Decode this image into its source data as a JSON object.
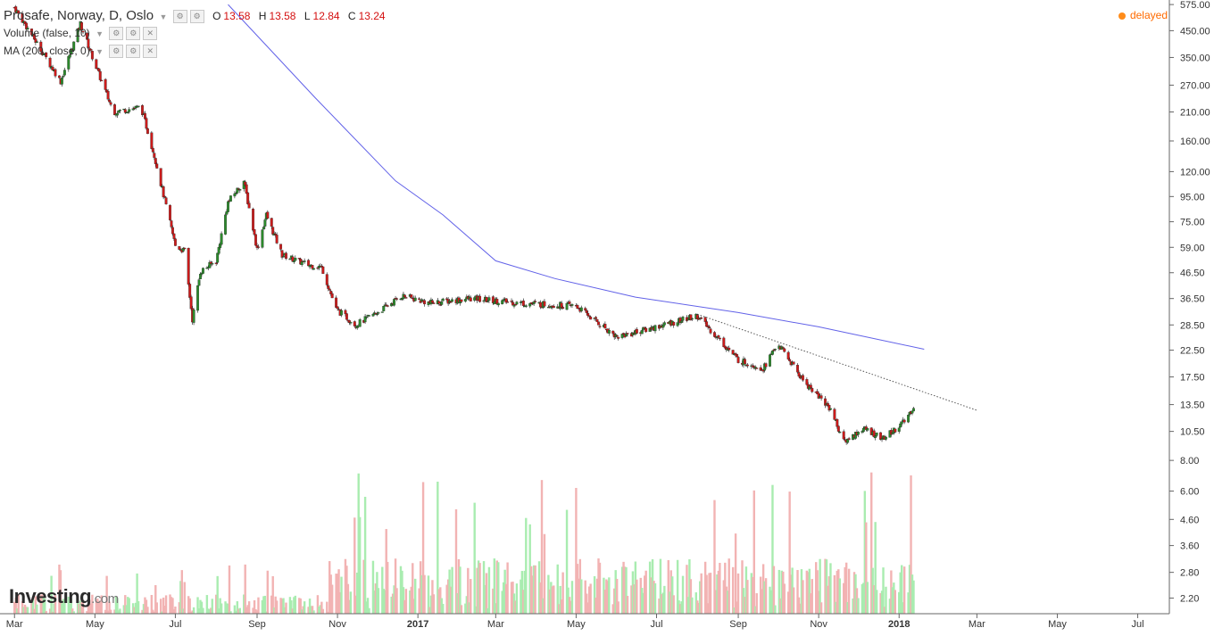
{
  "header": {
    "title": "Prosafe, Norway, D, Oslo",
    "ohlc": [
      {
        "label": "O",
        "value": "13.58"
      },
      {
        "label": "H",
        "value": "13.58"
      },
      {
        "label": "L",
        "value": "12.84"
      },
      {
        "label": "C",
        "value": "13.24"
      }
    ],
    "volume_study": "Volume (false, 10)",
    "ma_study": "MA (200, close, 0)"
  },
  "status": {
    "delayed": "delayed"
  },
  "logo": {
    "brand": "Investing",
    "domain": ".com"
  },
  "colors": {
    "up": "#2c8a2c",
    "down": "#cc1b1b",
    "vol_up": "#a9ecb0",
    "vol_down": "#f2b3b3",
    "ma": "#6262e8",
    "trendline": "#555555",
    "status": "#ff6a00"
  },
  "chart_data": {
    "type": "candlestick",
    "title": "Prosafe, Norway, D, Oslo",
    "y_scale": "log",
    "ylim": [
      1.9,
      600
    ],
    "y_ticks": [
      "575.00",
      "450.00",
      "350.00",
      "270.00",
      "210.00",
      "160.00",
      "120.00",
      "95.00",
      "75.00",
      "59.00",
      "46.50",
      "36.50",
      "28.50",
      "22.50",
      "17.50",
      "13.50",
      "10.50",
      "8.00",
      "6.00",
      "4.60",
      "3.60",
      "2.80",
      "2.20"
    ],
    "x_ticks": [
      "Mar",
      "May",
      "Jul",
      "Sep",
      "Nov",
      "2017",
      "Mar",
      "May",
      "Jul",
      "Sep",
      "Nov",
      "2018",
      "Mar",
      "May",
      "Jul"
    ],
    "x_range": [
      "2016-03",
      "2018-07"
    ],
    "price_series": [
      {
        "date": "2016-03-01",
        "close": 560
      },
      {
        "date": "2016-04-05",
        "close": 280
      },
      {
        "date": "2016-04-20",
        "close": 480
      },
      {
        "date": "2016-05-01",
        "close": 330
      },
      {
        "date": "2016-05-15",
        "close": 210
      },
      {
        "date": "2016-06-05",
        "close": 220
      },
      {
        "date": "2016-06-15",
        "close": 140
      },
      {
        "date": "2016-07-01",
        "close": 60
      },
      {
        "date": "2016-07-08",
        "close": 57
      },
      {
        "date": "2016-07-14",
        "close": 30
      },
      {
        "date": "2016-07-20",
        "close": 47
      },
      {
        "date": "2016-08-01",
        "close": 52
      },
      {
        "date": "2016-08-10",
        "close": 90
      },
      {
        "date": "2016-08-22",
        "close": 110
      },
      {
        "date": "2016-09-01",
        "close": 58
      },
      {
        "date": "2016-09-08",
        "close": 80
      },
      {
        "date": "2016-09-20",
        "close": 55
      },
      {
        "date": "2016-10-10",
        "close": 50
      },
      {
        "date": "2016-10-20",
        "close": 49
      },
      {
        "date": "2016-10-31",
        "close": 33
      },
      {
        "date": "2016-11-15",
        "close": 28.5
      },
      {
        "date": "2016-12-05",
        "close": 33
      },
      {
        "date": "2016-12-20",
        "close": 37.5
      },
      {
        "date": "2017-01-10",
        "close": 35
      },
      {
        "date": "2017-02-10",
        "close": 36.5
      },
      {
        "date": "2017-03-20",
        "close": 35
      },
      {
        "date": "2017-05-01",
        "close": 34
      },
      {
        "date": "2017-06-01",
        "close": 25.5
      },
      {
        "date": "2017-07-01",
        "close": 28
      },
      {
        "date": "2017-08-01",
        "close": 31
      },
      {
        "date": "2017-09-01",
        "close": 20.5
      },
      {
        "date": "2017-09-20",
        "close": 19
      },
      {
        "date": "2017-10-01",
        "close": 24
      },
      {
        "date": "2017-10-20",
        "close": 17
      },
      {
        "date": "2017-11-10",
        "close": 13
      },
      {
        "date": "2017-11-20",
        "close": 9.5
      },
      {
        "date": "2017-12-05",
        "close": 10.8
      },
      {
        "date": "2017-12-20",
        "close": 9.8
      },
      {
        "date": "2018-01-05",
        "close": 11.5
      },
      {
        "date": "2018-01-12",
        "close": 13.24
      }
    ],
    "ma_series": {
      "name": "MA (200, close, 0)",
      "points": [
        {
          "date": "2016-08-10",
          "value": 575
        },
        {
          "date": "2016-10-15",
          "value": 240
        },
        {
          "date": "2016-12-15",
          "value": 110
        },
        {
          "date": "2017-01-20",
          "value": 80
        },
        {
          "date": "2017-03-01",
          "value": 52
        },
        {
          "date": "2017-04-15",
          "value": 44
        },
        {
          "date": "2017-06-15",
          "value": 37
        },
        {
          "date": "2017-09-01",
          "value": 32
        },
        {
          "date": "2017-11-01",
          "value": 28
        },
        {
          "date": "2018-01-20",
          "value": 22.7
        }
      ]
    },
    "trendline": [
      {
        "date": "2017-08-01",
        "value": 31.5
      },
      {
        "date": "2018-03-01",
        "value": 12.8
      }
    ],
    "volume_axis_marker": "2.20",
    "legend": "top-left"
  }
}
